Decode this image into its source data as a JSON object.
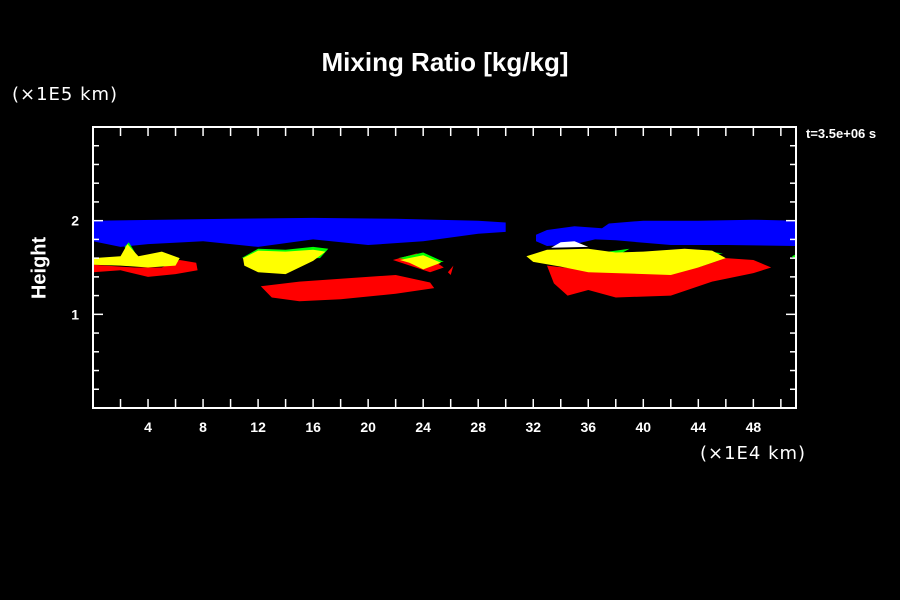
{
  "chart_data": {
    "type": "heatmap",
    "title": "Mixing Ratio [kg/kg]",
    "xlabel": "(×1E4 km)",
    "ylabel": "Height",
    "yunit": "(×1E5 km)",
    "annotation": "t=3.5e+06 s",
    "xlim": [
      0,
      51.1
    ],
    "ylim": [
      0,
      3
    ],
    "xticks": [
      "4",
      "8",
      "12",
      "16",
      "20",
      "24",
      "28",
      "32",
      "36",
      "40",
      "44",
      "48"
    ],
    "yticks": [
      "1",
      "2"
    ],
    "grid": false,
    "colors": {
      "background": "#000000",
      "blue": "#0000ff",
      "red": "#ff0000",
      "green": "#00ff00",
      "yellow": "#ffff00",
      "white": "#ffffff"
    },
    "regions": [
      {
        "level": "blue",
        "points": [
          [
            0,
            2.0
          ],
          [
            10,
            2.02
          ],
          [
            16,
            2.03
          ],
          [
            22,
            2.02
          ],
          [
            28,
            2.0
          ],
          [
            30,
            1.98
          ],
          [
            30,
            1.88
          ],
          [
            28,
            1.86
          ],
          [
            24,
            1.78
          ],
          [
            20,
            1.74
          ],
          [
            16,
            1.8
          ],
          [
            12,
            1.72
          ],
          [
            8,
            1.78
          ],
          [
            4,
            1.75
          ],
          [
            2,
            1.72
          ],
          [
            0,
            1.78
          ]
        ]
      },
      {
        "level": "blue",
        "points": [
          [
            32.2,
            1.85
          ],
          [
            33,
            1.9
          ],
          [
            35,
            1.94
          ],
          [
            37,
            1.92
          ],
          [
            37.5,
            1.97
          ],
          [
            40,
            2.0
          ],
          [
            44,
            2.0
          ],
          [
            48,
            2.01
          ],
          [
            51.1,
            2.0
          ],
          [
            51.1,
            1.73
          ],
          [
            46,
            1.74
          ],
          [
            42,
            1.74
          ],
          [
            38,
            1.79
          ],
          [
            36.5,
            1.8
          ],
          [
            35,
            1.75
          ],
          [
            33,
            1.73
          ],
          [
            32.2,
            1.78
          ]
        ]
      },
      {
        "level": "red",
        "points": [
          [
            0,
            1.53
          ],
          [
            3,
            1.5
          ],
          [
            5,
            1.5
          ],
          [
            6.3,
            1.58
          ],
          [
            7.5,
            1.55
          ],
          [
            7.6,
            1.47
          ],
          [
            6,
            1.43
          ],
          [
            4,
            1.4
          ],
          [
            2,
            1.47
          ],
          [
            0,
            1.45
          ]
        ]
      },
      {
        "level": "red",
        "points": [
          [
            12.2,
            1.3
          ],
          [
            15,
            1.35
          ],
          [
            18,
            1.38
          ],
          [
            22,
            1.42
          ],
          [
            24.5,
            1.34
          ],
          [
            24.8,
            1.28
          ],
          [
            22,
            1.22
          ],
          [
            18,
            1.16
          ],
          [
            15,
            1.14
          ],
          [
            13,
            1.18
          ]
        ]
      },
      {
        "level": "red",
        "points": [
          [
            21.8,
            1.58
          ],
          [
            23.5,
            1.65
          ],
          [
            24.2,
            1.63
          ],
          [
            25.5,
            1.5
          ],
          [
            24.5,
            1.45
          ]
        ]
      },
      {
        "level": "red",
        "points": [
          [
            25.8,
            1.45
          ],
          [
            26.2,
            1.52
          ],
          [
            26.0,
            1.42
          ]
        ]
      },
      {
        "level": "red",
        "points": [
          [
            33,
            1.52
          ],
          [
            36,
            1.47
          ],
          [
            40,
            1.45
          ],
          [
            44,
            1.5
          ],
          [
            46,
            1.6
          ],
          [
            48,
            1.58
          ],
          [
            49.3,
            1.5
          ],
          [
            48,
            1.44
          ],
          [
            45,
            1.35
          ],
          [
            42,
            1.2
          ],
          [
            38,
            1.18
          ],
          [
            36,
            1.26
          ],
          [
            34.5,
            1.2
          ],
          [
            33.5,
            1.33
          ]
        ]
      },
      {
        "level": "green",
        "points": [
          [
            2.3,
            1.72
          ],
          [
            2.6,
            1.77
          ],
          [
            3.3,
            1.6
          ],
          [
            2.8,
            1.58
          ]
        ]
      },
      {
        "level": "green",
        "points": [
          [
            3.3,
            1.55
          ],
          [
            4,
            1.63
          ],
          [
            3.6,
            1.53
          ]
        ]
      },
      {
        "level": "green",
        "points": [
          [
            10.8,
            1.6
          ],
          [
            12,
            1.7
          ],
          [
            14,
            1.69
          ],
          [
            16,
            1.72
          ],
          [
            17.1,
            1.7
          ],
          [
            16.5,
            1.6
          ]
        ]
      },
      {
        "level": "green",
        "points": [
          [
            22.2,
            1.6
          ],
          [
            24,
            1.66
          ],
          [
            25.5,
            1.56
          ],
          [
            24.5,
            1.55
          ]
        ]
      },
      {
        "level": "green",
        "points": [
          [
            37,
            1.66
          ],
          [
            39,
            1.7
          ],
          [
            38,
            1.62
          ]
        ]
      },
      {
        "level": "green",
        "points": [
          [
            44,
            1.69
          ],
          [
            45.8,
            1.65
          ],
          [
            44.5,
            1.63
          ]
        ]
      },
      {
        "level": "green",
        "points": [
          [
            50.8,
            1.62
          ],
          [
            51.1,
            1.64
          ],
          [
            51.1,
            1.58
          ]
        ]
      },
      {
        "level": "yellow",
        "points": [
          [
            0,
            1.6
          ],
          [
            2,
            1.62
          ],
          [
            2.5,
            1.75
          ],
          [
            3.3,
            1.62
          ],
          [
            5,
            1.67
          ],
          [
            6.3,
            1.6
          ],
          [
            6,
            1.52
          ],
          [
            4,
            1.5
          ],
          [
            2,
            1.52
          ],
          [
            0,
            1.53
          ]
        ]
      },
      {
        "level": "yellow",
        "points": [
          [
            10.9,
            1.6
          ],
          [
            12,
            1.68
          ],
          [
            14,
            1.67
          ],
          [
            16,
            1.69
          ],
          [
            16.9,
            1.67
          ],
          [
            16,
            1.57
          ],
          [
            14,
            1.43
          ],
          [
            12,
            1.45
          ],
          [
            11,
            1.52
          ]
        ]
      },
      {
        "level": "yellow",
        "points": [
          [
            22.3,
            1.58
          ],
          [
            24,
            1.63
          ],
          [
            25.3,
            1.55
          ],
          [
            24,
            1.48
          ],
          [
            23,
            1.55
          ]
        ]
      },
      {
        "level": "yellow",
        "points": [
          [
            31.5,
            1.62
          ],
          [
            33,
            1.69
          ],
          [
            36,
            1.7
          ],
          [
            38,
            1.66
          ],
          [
            40,
            1.67
          ],
          [
            43,
            1.7
          ],
          [
            45,
            1.68
          ],
          [
            46,
            1.6
          ],
          [
            44,
            1.5
          ],
          [
            42,
            1.42
          ],
          [
            38,
            1.44
          ],
          [
            36,
            1.45
          ],
          [
            34,
            1.51
          ],
          [
            32,
            1.56
          ]
        ]
      },
      {
        "level": "white",
        "points": [
          [
            33.3,
            1.71
          ],
          [
            34,
            1.77
          ],
          [
            35,
            1.78
          ],
          [
            36,
            1.72
          ]
        ]
      }
    ]
  }
}
